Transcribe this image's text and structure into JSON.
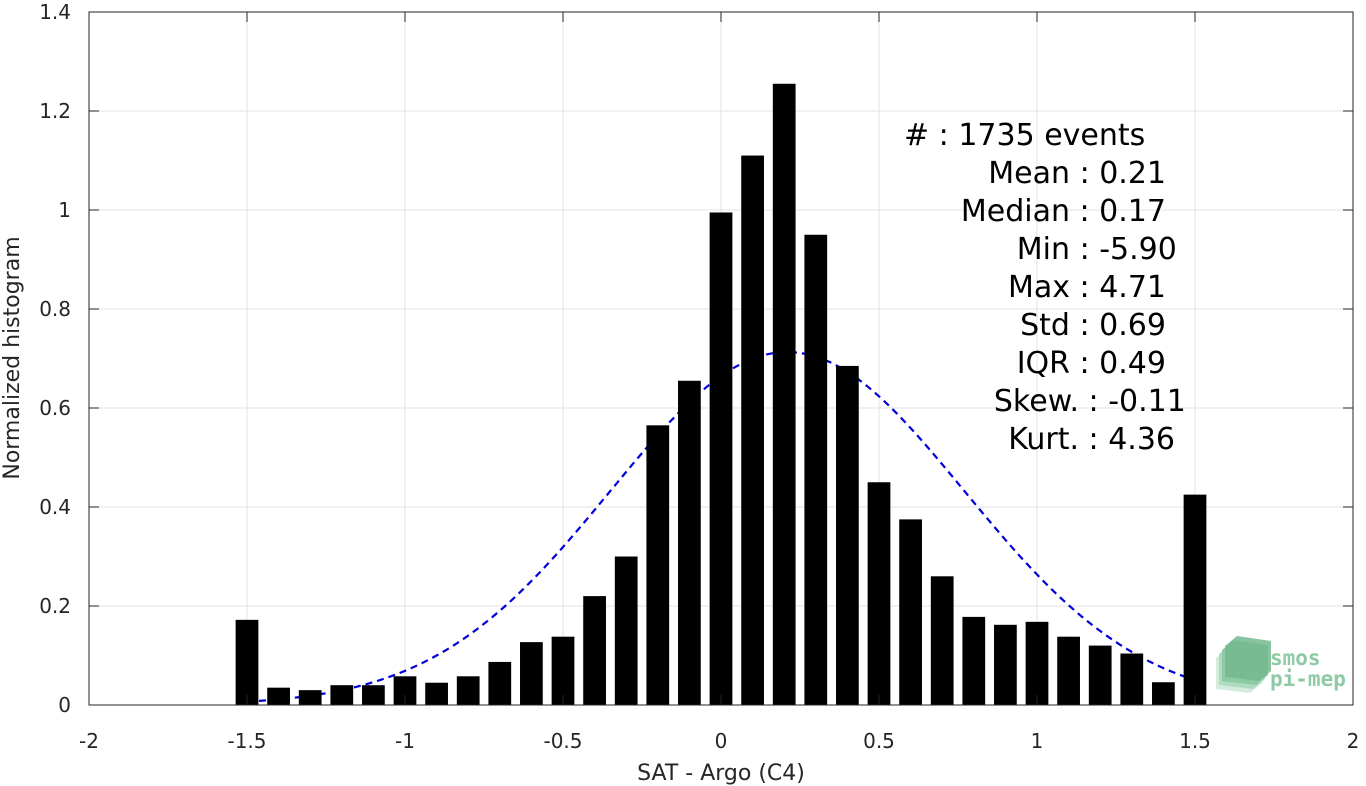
{
  "chart_data": {
    "type": "bar",
    "xlabel": "SAT - Argo (C4)",
    "ylabel": "Normalized histogram",
    "xlim": [
      -2,
      2
    ],
    "ylim": [
      0,
      1.4
    ],
    "x_ticks": [
      -2,
      -1.5,
      -1,
      -0.5,
      0,
      0.5,
      1,
      1.5,
      2
    ],
    "x_tick_labels": [
      "-2",
      "-1.5",
      "-1",
      "-0.5",
      "0",
      "0.5",
      "1",
      "1.5",
      "2"
    ],
    "y_ticks": [
      0,
      0.2,
      0.4,
      0.6,
      0.8,
      1,
      1.2,
      1.4
    ],
    "y_tick_labels": [
      "0",
      "0.2",
      "0.4",
      "0.6",
      "0.8",
      "1",
      "1.2",
      "1.4"
    ],
    "grid": true,
    "bin_width": 0.1,
    "bar_color": "#000000",
    "bins": [
      {
        "x": -1.5,
        "y": 0.172
      },
      {
        "x": -1.4,
        "y": 0.035
      },
      {
        "x": -1.3,
        "y": 0.03
      },
      {
        "x": -1.2,
        "y": 0.04
      },
      {
        "x": -1.1,
        "y": 0.04
      },
      {
        "x": -1.0,
        "y": 0.058
      },
      {
        "x": -0.9,
        "y": 0.045
      },
      {
        "x": -0.8,
        "y": 0.058
      },
      {
        "x": -0.7,
        "y": 0.087
      },
      {
        "x": -0.6,
        "y": 0.127
      },
      {
        "x": -0.5,
        "y": 0.138
      },
      {
        "x": -0.4,
        "y": 0.22
      },
      {
        "x": -0.3,
        "y": 0.3
      },
      {
        "x": -0.2,
        "y": 0.565
      },
      {
        "x": -0.1,
        "y": 0.655
      },
      {
        "x": 0.0,
        "y": 0.995
      },
      {
        "x": 0.1,
        "y": 1.11
      },
      {
        "x": 0.2,
        "y": 1.255
      },
      {
        "x": 0.3,
        "y": 0.95
      },
      {
        "x": 0.4,
        "y": 0.685
      },
      {
        "x": 0.5,
        "y": 0.45
      },
      {
        "x": 0.6,
        "y": 0.375
      },
      {
        "x": 0.7,
        "y": 0.26
      },
      {
        "x": 0.8,
        "y": 0.178
      },
      {
        "x": 0.9,
        "y": 0.162
      },
      {
        "x": 1.0,
        "y": 0.168
      },
      {
        "x": 1.1,
        "y": 0.138
      },
      {
        "x": 1.2,
        "y": 0.12
      },
      {
        "x": 1.3,
        "y": 0.104
      },
      {
        "x": 1.4,
        "y": 0.046
      },
      {
        "x": 1.5,
        "y": 0.425
      }
    ],
    "fit_curve": {
      "style": "dashed",
      "color": "#0000dd",
      "mean": 0.21,
      "std": 0.56,
      "peak": 0.713,
      "x_range": [
        -1.5,
        1.5
      ]
    },
    "stats": [
      {
        "label": "#  : 1735 events"
      },
      {
        "label": "Mean : 0.21"
      },
      {
        "label": "Median : 0.17"
      },
      {
        "label": "Min : -5.90"
      },
      {
        "label": "Max : 4.71"
      },
      {
        "label": "Std : 0.69"
      },
      {
        "label": "IQR : 0.49"
      },
      {
        "label": "Skew. : -0.11"
      },
      {
        "label": "Kurt. : 4.36"
      }
    ]
  },
  "logo": {
    "line1": "smos",
    "line2": "pi-mep",
    "color": "#8fcaa6"
  }
}
